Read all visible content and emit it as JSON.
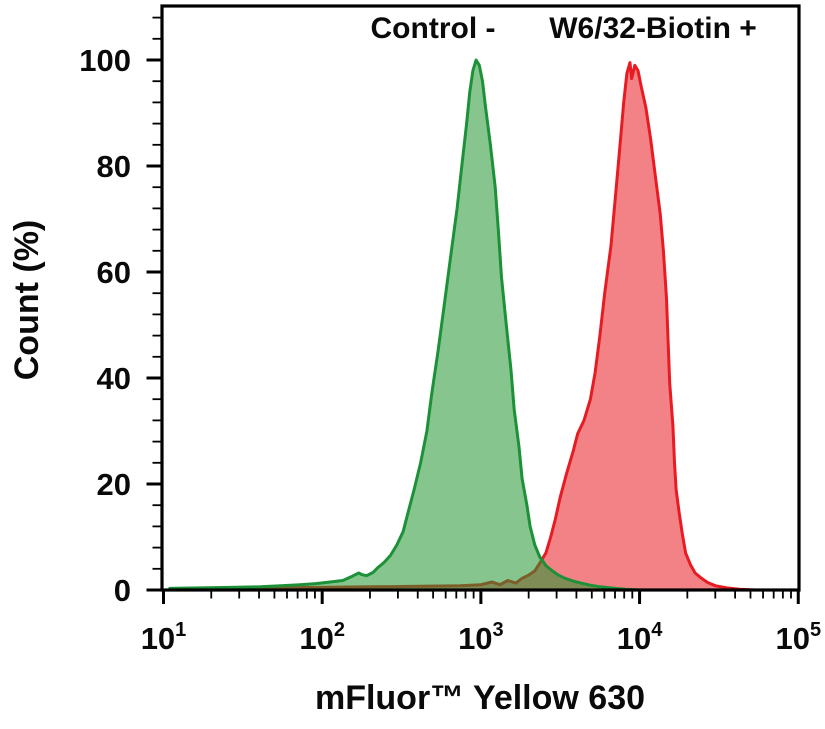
{
  "background_color": "#ffffff",
  "chart_data": {
    "type": "area",
    "subtype": "flow-cytometry-histogram-overlay",
    "title": "",
    "xlabel": "mFluor™ Yellow 630",
    "ylabel": "Count (%)",
    "x_scale": "log10",
    "x_range_exponents": [
      1,
      5
    ],
    "ylim": [
      0,
      100
    ],
    "grid": false,
    "axis_color": "#000000",
    "x_ticks": [
      {
        "base": "10",
        "exp": "1"
      },
      {
        "base": "10",
        "exp": "2"
      },
      {
        "base": "10",
        "exp": "3"
      },
      {
        "base": "10",
        "exp": "4"
      },
      {
        "base": "10",
        "exp": "5"
      }
    ],
    "x_minor_ticks": "log positions 2-9 within each decade",
    "y_ticks": [
      "0",
      "20",
      "40",
      "60",
      "80",
      "100"
    ],
    "y_minor_step_pct": 4,
    "legend": {
      "position": "top-inside",
      "entries": [
        {
          "label": "Control -",
          "color": "#21813c"
        },
        {
          "label": "W6/32-Biotin +",
          "color": "#d32b2e"
        }
      ]
    },
    "series": [
      {
        "name": "Control -",
        "role": "negative-control-population",
        "stroke": "#1c9137",
        "fill": "rgba(34,150,47,0.55)",
        "points_logx_pct": [
          [
            1.04,
            0.3
          ],
          [
            1.23,
            0.4
          ],
          [
            1.42,
            0.5
          ],
          [
            1.61,
            0.6
          ],
          [
            1.74,
            0.8
          ],
          [
            1.86,
            1.0
          ],
          [
            1.96,
            1.2
          ],
          [
            2.05,
            1.5
          ],
          [
            2.13,
            1.8
          ],
          [
            2.19,
            2.6
          ],
          [
            2.23,
            3.2
          ],
          [
            2.25,
            2.9
          ],
          [
            2.28,
            2.7
          ],
          [
            2.32,
            3.3
          ],
          [
            2.35,
            4.2
          ],
          [
            2.39,
            5.2
          ],
          [
            2.43,
            6.5
          ],
          [
            2.47,
            8.5
          ],
          [
            2.51,
            11
          ],
          [
            2.54,
            14.5
          ],
          [
            2.58,
            19
          ],
          [
            2.62,
            24
          ],
          [
            2.66,
            30
          ],
          [
            2.69,
            37
          ],
          [
            2.73,
            45
          ],
          [
            2.77,
            54
          ],
          [
            2.81,
            63
          ],
          [
            2.85,
            72
          ],
          [
            2.88,
            80
          ],
          [
            2.91,
            88
          ],
          [
            2.93,
            94
          ],
          [
            2.95,
            98
          ],
          [
            2.97,
            100
          ],
          [
            2.99,
            99
          ],
          [
            3.01,
            96
          ],
          [
            3.03,
            91
          ],
          [
            3.06,
            84
          ],
          [
            3.09,
            76
          ],
          [
            3.11,
            68
          ],
          [
            3.13,
            59
          ],
          [
            3.16,
            50
          ],
          [
            3.19,
            41.5
          ],
          [
            3.21,
            34
          ],
          [
            3.24,
            27
          ],
          [
            3.26,
            21
          ],
          [
            3.29,
            16
          ],
          [
            3.31,
            12
          ],
          [
            3.34,
            8.5
          ],
          [
            3.37,
            6.3
          ],
          [
            3.41,
            4.6
          ],
          [
            3.45,
            3.6
          ],
          [
            3.49,
            2.8
          ],
          [
            3.53,
            2.2
          ],
          [
            3.58,
            1.7
          ],
          [
            3.63,
            1.3
          ],
          [
            3.69,
            0.9
          ],
          [
            3.75,
            0.6
          ],
          [
            3.83,
            0.35
          ],
          [
            3.91,
            0.15
          ],
          [
            4.0,
            0
          ]
        ]
      },
      {
        "name": "W6/32-Biotin +",
        "role": "stained-positive-population",
        "stroke": "#e81b23",
        "fill": "rgba(232,27,35,0.55)",
        "points_logx_pct": [
          [
            1.04,
            0.2
          ],
          [
            1.36,
            0.3
          ],
          [
            1.67,
            0.4
          ],
          [
            1.99,
            0.5
          ],
          [
            2.3,
            0.6
          ],
          [
            2.62,
            0.7
          ],
          [
            2.87,
            0.8
          ],
          [
            3.0,
            1.0
          ],
          [
            3.07,
            1.5
          ],
          [
            3.12,
            1.0
          ],
          [
            3.17,
            1.8
          ],
          [
            3.22,
            1.3
          ],
          [
            3.26,
            2.2
          ],
          [
            3.3,
            2.8
          ],
          [
            3.34,
            3.6
          ],
          [
            3.37,
            5
          ],
          [
            3.41,
            7
          ],
          [
            3.44,
            10
          ],
          [
            3.47,
            13.5
          ],
          [
            3.5,
            17.5
          ],
          [
            3.54,
            22
          ],
          [
            3.58,
            26
          ],
          [
            3.61,
            29.5
          ],
          [
            3.65,
            32
          ],
          [
            3.69,
            36
          ],
          [
            3.72,
            41
          ],
          [
            3.75,
            48
          ],
          [
            3.78,
            56
          ],
          [
            3.82,
            65
          ],
          [
            3.85,
            75
          ],
          [
            3.88,
            85
          ],
          [
            3.9,
            92
          ],
          [
            3.92,
            97.5
          ],
          [
            3.94,
            99.5
          ],
          [
            3.95,
            96.5
          ],
          [
            3.97,
            99
          ],
          [
            3.99,
            98
          ],
          [
            4.01,
            95
          ],
          [
            4.04,
            91
          ],
          [
            4.07,
            85
          ],
          [
            4.1,
            78
          ],
          [
            4.13,
            71
          ],
          [
            4.15,
            64
          ],
          [
            4.17,
            55
          ],
          [
            4.18,
            47
          ],
          [
            4.19,
            39
          ],
          [
            4.21,
            31
          ],
          [
            4.22,
            24
          ],
          [
            4.23,
            19
          ],
          [
            4.25,
            14.5
          ],
          [
            4.27,
            10.5
          ],
          [
            4.29,
            7
          ],
          [
            4.32,
            4.8
          ],
          [
            4.35,
            3.2
          ],
          [
            4.39,
            2.2
          ],
          [
            4.43,
            1.4
          ],
          [
            4.48,
            0.8
          ],
          [
            4.55,
            0.4
          ],
          [
            4.63,
            0.15
          ],
          [
            4.73,
            0
          ]
        ]
      }
    ]
  }
}
